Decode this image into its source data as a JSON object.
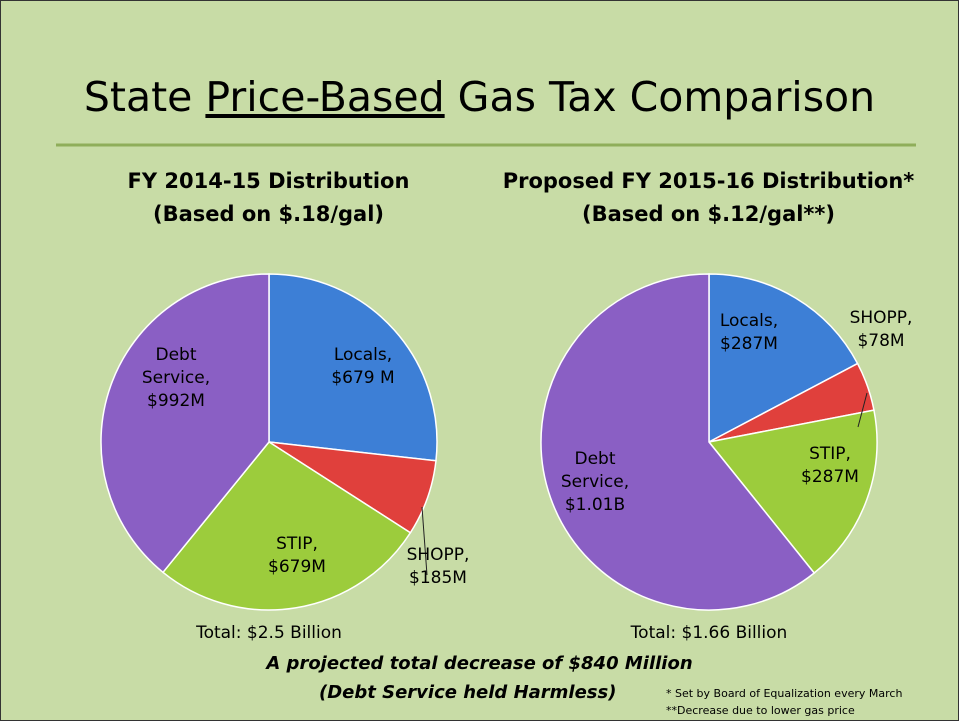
{
  "slide": {
    "title_parts": [
      "State ",
      "Price-Based",
      " Gas Tax Comparison"
    ],
    "summary": "A projected total decrease of $840 Million",
    "summary_note": "(Debt Service held Harmless)",
    "footnotes": [
      "* Set by Board of Equalization every March",
      "**Decrease due to lower gas price"
    ]
  },
  "chart_data": [
    {
      "type": "pie",
      "title": "FY 2014-15 Distribution",
      "subtitle": "(Based on $.18/gal)",
      "categories": [
        "Locals,",
        "SHOPP,",
        "STIP,",
        "Debt Service,"
      ],
      "values": [
        679,
        185,
        679,
        992
      ],
      "value_labels": [
        "$679 M",
        "$185M",
        "$679M",
        "$992M"
      ],
      "colors": [
        "#3d7fd6",
        "#e0403c",
        "#9ccc3c",
        "#8a5fc4"
      ],
      "annotation": "Total: $2.5 Billion"
    },
    {
      "type": "pie",
      "title": "Proposed FY 2015-16 Distribution*",
      "subtitle": "(Based on $.12/gal**)",
      "categories": [
        "Locals,",
        "SHOPP,",
        "STIP,",
        "Debt Service,"
      ],
      "values": [
        287,
        78,
        287,
        1010
      ],
      "value_labels": [
        "$287M",
        "$78M",
        "$287M",
        "$1.01B"
      ],
      "colors": [
        "#3d7fd6",
        "#e0403c",
        "#9ccc3c",
        "#8a5fc4"
      ],
      "annotation": "Total: $1.66 Billion"
    }
  ]
}
